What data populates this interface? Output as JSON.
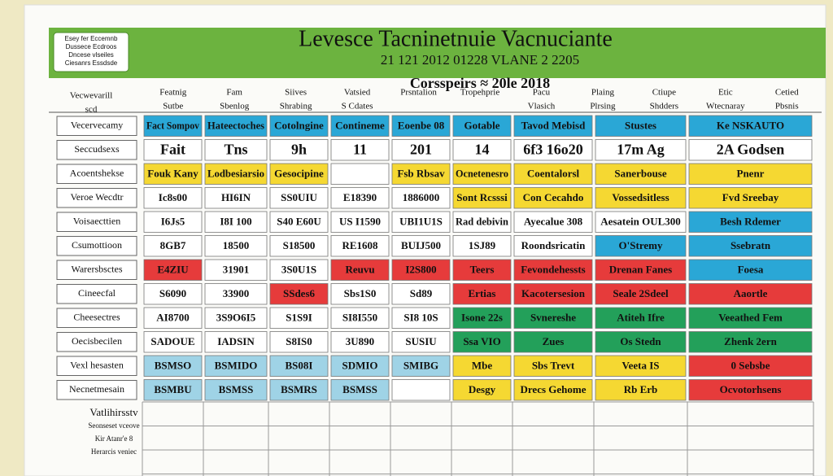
{
  "header": {
    "badge": [
      "Esey fer Eccemnb",
      "Dussece Ecdroos",
      "Dncese vlseiles",
      "Ciesanrs Essdsde"
    ],
    "title": "Levesce Tacninetnuie   Vacnuciante",
    "subtitle": "21 121   2012   01228   VLANE 2 2205"
  },
  "table": {
    "caption": "Corsspeirs ≈ 20le 2018",
    "corner": [
      "Vecwevarill",
      "scd"
    ],
    "columns": [
      [
        "Featnig",
        "Sutbe"
      ],
      [
        "Fam",
        "Sbenlog"
      ],
      [
        "Siives",
        "Shrabing"
      ],
      [
        "Vatsied",
        "S Cdates"
      ],
      [
        "Prsntalion"
      ],
      [
        "Tropehprie"
      ],
      [
        "Pacu",
        "Vlasich"
      ],
      [
        "Plaing",
        "Plrsing"
      ],
      [
        "Ctiupe",
        "Shdders"
      ],
      [
        "Etic",
        "Wtecnaray"
      ],
      [
        "Cetied",
        "Pbsnis"
      ]
    ],
    "rows": [
      {
        "label": "Vecervecamy",
        "cells": [
          {
            "text": "Fact Sompov",
            "color": "#2aa7d6"
          },
          {
            "text": "Hateectoches",
            "color": "#2aa7d6"
          },
          {
            "text": "Cotolngine",
            "color": "#2aa7d6"
          },
          {
            "text": "Contineme",
            "color": "#2aa7d6"
          },
          {
            "text": "Eoenbe 08",
            "color": "#2aa7d6"
          },
          {
            "text": "Gotable",
            "color": "#2aa7d6"
          },
          {
            "text": "Tavod Mebisd",
            "color": "#2aa7d6"
          },
          {
            "text": "Stustes",
            "color": "#2aa7d6"
          },
          {
            "text": "Ke NSKAUTO",
            "color": "#2aa7d6"
          }
        ]
      },
      {
        "label": "Seccudsexs",
        "cells": [
          {
            "text": "Fait"
          },
          {
            "text": "Tns"
          },
          {
            "text": "9h"
          },
          {
            "text": "11"
          },
          {
            "text": "201"
          },
          {
            "text": "14"
          },
          {
            "text": "6f3 16o20"
          },
          {
            "text": "17m Ag"
          },
          {
            "text": "2A Godsen"
          }
        ]
      },
      {
        "label": "Acoentshekse",
        "cells": [
          {
            "text": "Fouk Kany",
            "color": "#f5d832"
          },
          {
            "text": "Lodbesiarsio",
            "color": "#f5d832"
          },
          {
            "text": "Gesocipine",
            "color": "#f5d832"
          },
          {},
          {
            "text": "Fsb Rbsav",
            "color": "#f5d832"
          },
          {
            "text": "Ocnetenesro",
            "color": "#f5d832"
          },
          {
            "text": "Coentalorsl",
            "color": "#f5d832"
          },
          {
            "text": "Sanerbouse",
            "color": "#f5d832"
          },
          {
            "text": "Pnenr",
            "color": "#f5d832"
          }
        ]
      },
      {
        "label": "Veroe Wecdtr",
        "cells": [
          {
            "text": "Ic8s00"
          },
          {
            "text": "HI6IN"
          },
          {
            "text": "SS0UIU"
          },
          {
            "text": "E18390"
          },
          {
            "text": "1886000"
          },
          {
            "text": "Sont Rcsssi",
            "color": "#f5d832"
          },
          {
            "text": "Con Cecahdo",
            "color": "#f5d832"
          },
          {
            "text": "Vossedsitless",
            "color": "#f5d832"
          },
          {
            "text": "Fvd Sreebay",
            "color": "#f5d832"
          }
        ]
      },
      {
        "label": "Voisaecttien",
        "cells": [
          {
            "text": "I6Js5"
          },
          {
            "text": "I8I 100"
          },
          {
            "text": "S40 E60U"
          },
          {
            "text": "US I1590"
          },
          {
            "text": "UBI1U1S"
          },
          {
            "text": "Rad debivin"
          },
          {
            "text": "Ayecalue 308"
          },
          {
            "text": "Aesatein OUL300"
          },
          {
            "text": "Besh Rdemer",
            "color": "#2aa7d6"
          }
        ]
      },
      {
        "label": "Csumottioon",
        "cells": [
          {
            "text": "8GB7"
          },
          {
            "text": "18500"
          },
          {
            "text": "S18500"
          },
          {
            "text": "RE1608"
          },
          {
            "text": "BUIJ500"
          },
          {
            "text": "1SJ89"
          },
          {
            "text": "Roondsricatin"
          },
          {
            "text": "O'Stremy",
            "color": "#2aa7d6"
          },
          {
            "text": "Ssebratn",
            "color": "#2aa7d6"
          }
        ]
      },
      {
        "label": "Warersbsctes",
        "cells": [
          {
            "text": "E4ZIU",
            "color": "#e63b3b"
          },
          {
            "text": "31901"
          },
          {
            "text": "3S0U1S"
          },
          {
            "text": "Reuvu",
            "color": "#e63b3b"
          },
          {
            "text": "I2S800",
            "color": "#e63b3b"
          },
          {
            "text": "Teers",
            "color": "#e63b3b"
          },
          {
            "text": "Fevondehessts",
            "color": "#e63b3b"
          },
          {
            "text": "Drenan Fanes",
            "color": "#e63b3b"
          },
          {
            "text": "Foesa",
            "color": "#2aa7d6"
          }
        ]
      },
      {
        "label": "Cineecfal",
        "cells": [
          {
            "text": "S6090"
          },
          {
            "text": "33900"
          },
          {
            "text": "SSdes6",
            "color": "#e63b3b"
          },
          {
            "text": "Sbs1S0"
          },
          {
            "text": "Sd89"
          },
          {
            "text": "Ertias",
            "color": "#e63b3b"
          },
          {
            "text": "Kacotersesion",
            "color": "#e63b3b"
          },
          {
            "text": "Seale 2Sdeel",
            "color": "#e63b3b"
          },
          {
            "text": "Aaortle",
            "color": "#e63b3b"
          }
        ]
      },
      {
        "label": "Cheesectres",
        "cells": [
          {
            "text": "AI8700"
          },
          {
            "text": "3S9O6I5"
          },
          {
            "text": "S1S9I"
          },
          {
            "text": "SI8I550"
          },
          {
            "text": "SI8 10S"
          },
          {
            "text": "Isone 22s",
            "color": "#23a05a"
          },
          {
            "text": "Svnereshe",
            "color": "#23a05a"
          },
          {
            "text": "Atiteh Ifre",
            "color": "#23a05a"
          },
          {
            "text": "Veeathed Fem",
            "color": "#23a05a"
          }
        ]
      },
      {
        "label": "Oecisbecilen",
        "cells": [
          {
            "text": "SADOUE"
          },
          {
            "text": "IADSIN"
          },
          {
            "text": "S8IS0"
          },
          {
            "text": "3U890"
          },
          {
            "text": "SUSIU"
          },
          {
            "text": "Ssa VIO",
            "color": "#23a05a"
          },
          {
            "text": "Zues",
            "color": "#23a05a"
          },
          {
            "text": "Os Stedn",
            "color": "#23a05a"
          },
          {
            "text": "Zhenk 2ern",
            "color": "#23a05a"
          }
        ]
      },
      {
        "label": "Vexl hesasten",
        "cells": [
          {
            "text": "BSMSO",
            "color": "#9fd3e6"
          },
          {
            "text": "BSMIDO",
            "color": "#9fd3e6"
          },
          {
            "text": "BS08I",
            "color": "#9fd3e6"
          },
          {
            "text": "SDMIO",
            "color": "#9fd3e6"
          },
          {
            "text": "SMIBG",
            "color": "#9fd3e6"
          },
          {
            "text": "Mbe",
            "color": "#f5d832"
          },
          {
            "text": "Sbs Trevt",
            "color": "#f5d832"
          },
          {
            "text": "Veeta IS",
            "color": "#f5d832"
          },
          {
            "text": "0 Sebsbe",
            "color": "#e63b3b"
          }
        ]
      },
      {
        "label": "Necnetmesain",
        "cells": [
          {
            "text": "BSMBU",
            "color": "#9fd3e6"
          },
          {
            "text": "BSMSS",
            "color": "#9fd3e6"
          },
          {
            "text": "BSMRS",
            "color": "#9fd3e6"
          },
          {
            "text": "BSMSS",
            "color": "#9fd3e6"
          },
          {},
          {
            "text": "Desgy",
            "color": "#f5d832"
          },
          {
            "text": "Drecs Gehome",
            "color": "#f5d832"
          },
          {
            "text": "Rb Erb",
            "color": "#f5d832"
          },
          {
            "text": "Ocvotorhsens",
            "color": "#e63b3b"
          }
        ]
      }
    ],
    "notes": [
      "Vatlihirsstv",
      "Seonseset vceove",
      "Kir Atanr'e 8",
      "Herarcis veniec"
    ]
  }
}
